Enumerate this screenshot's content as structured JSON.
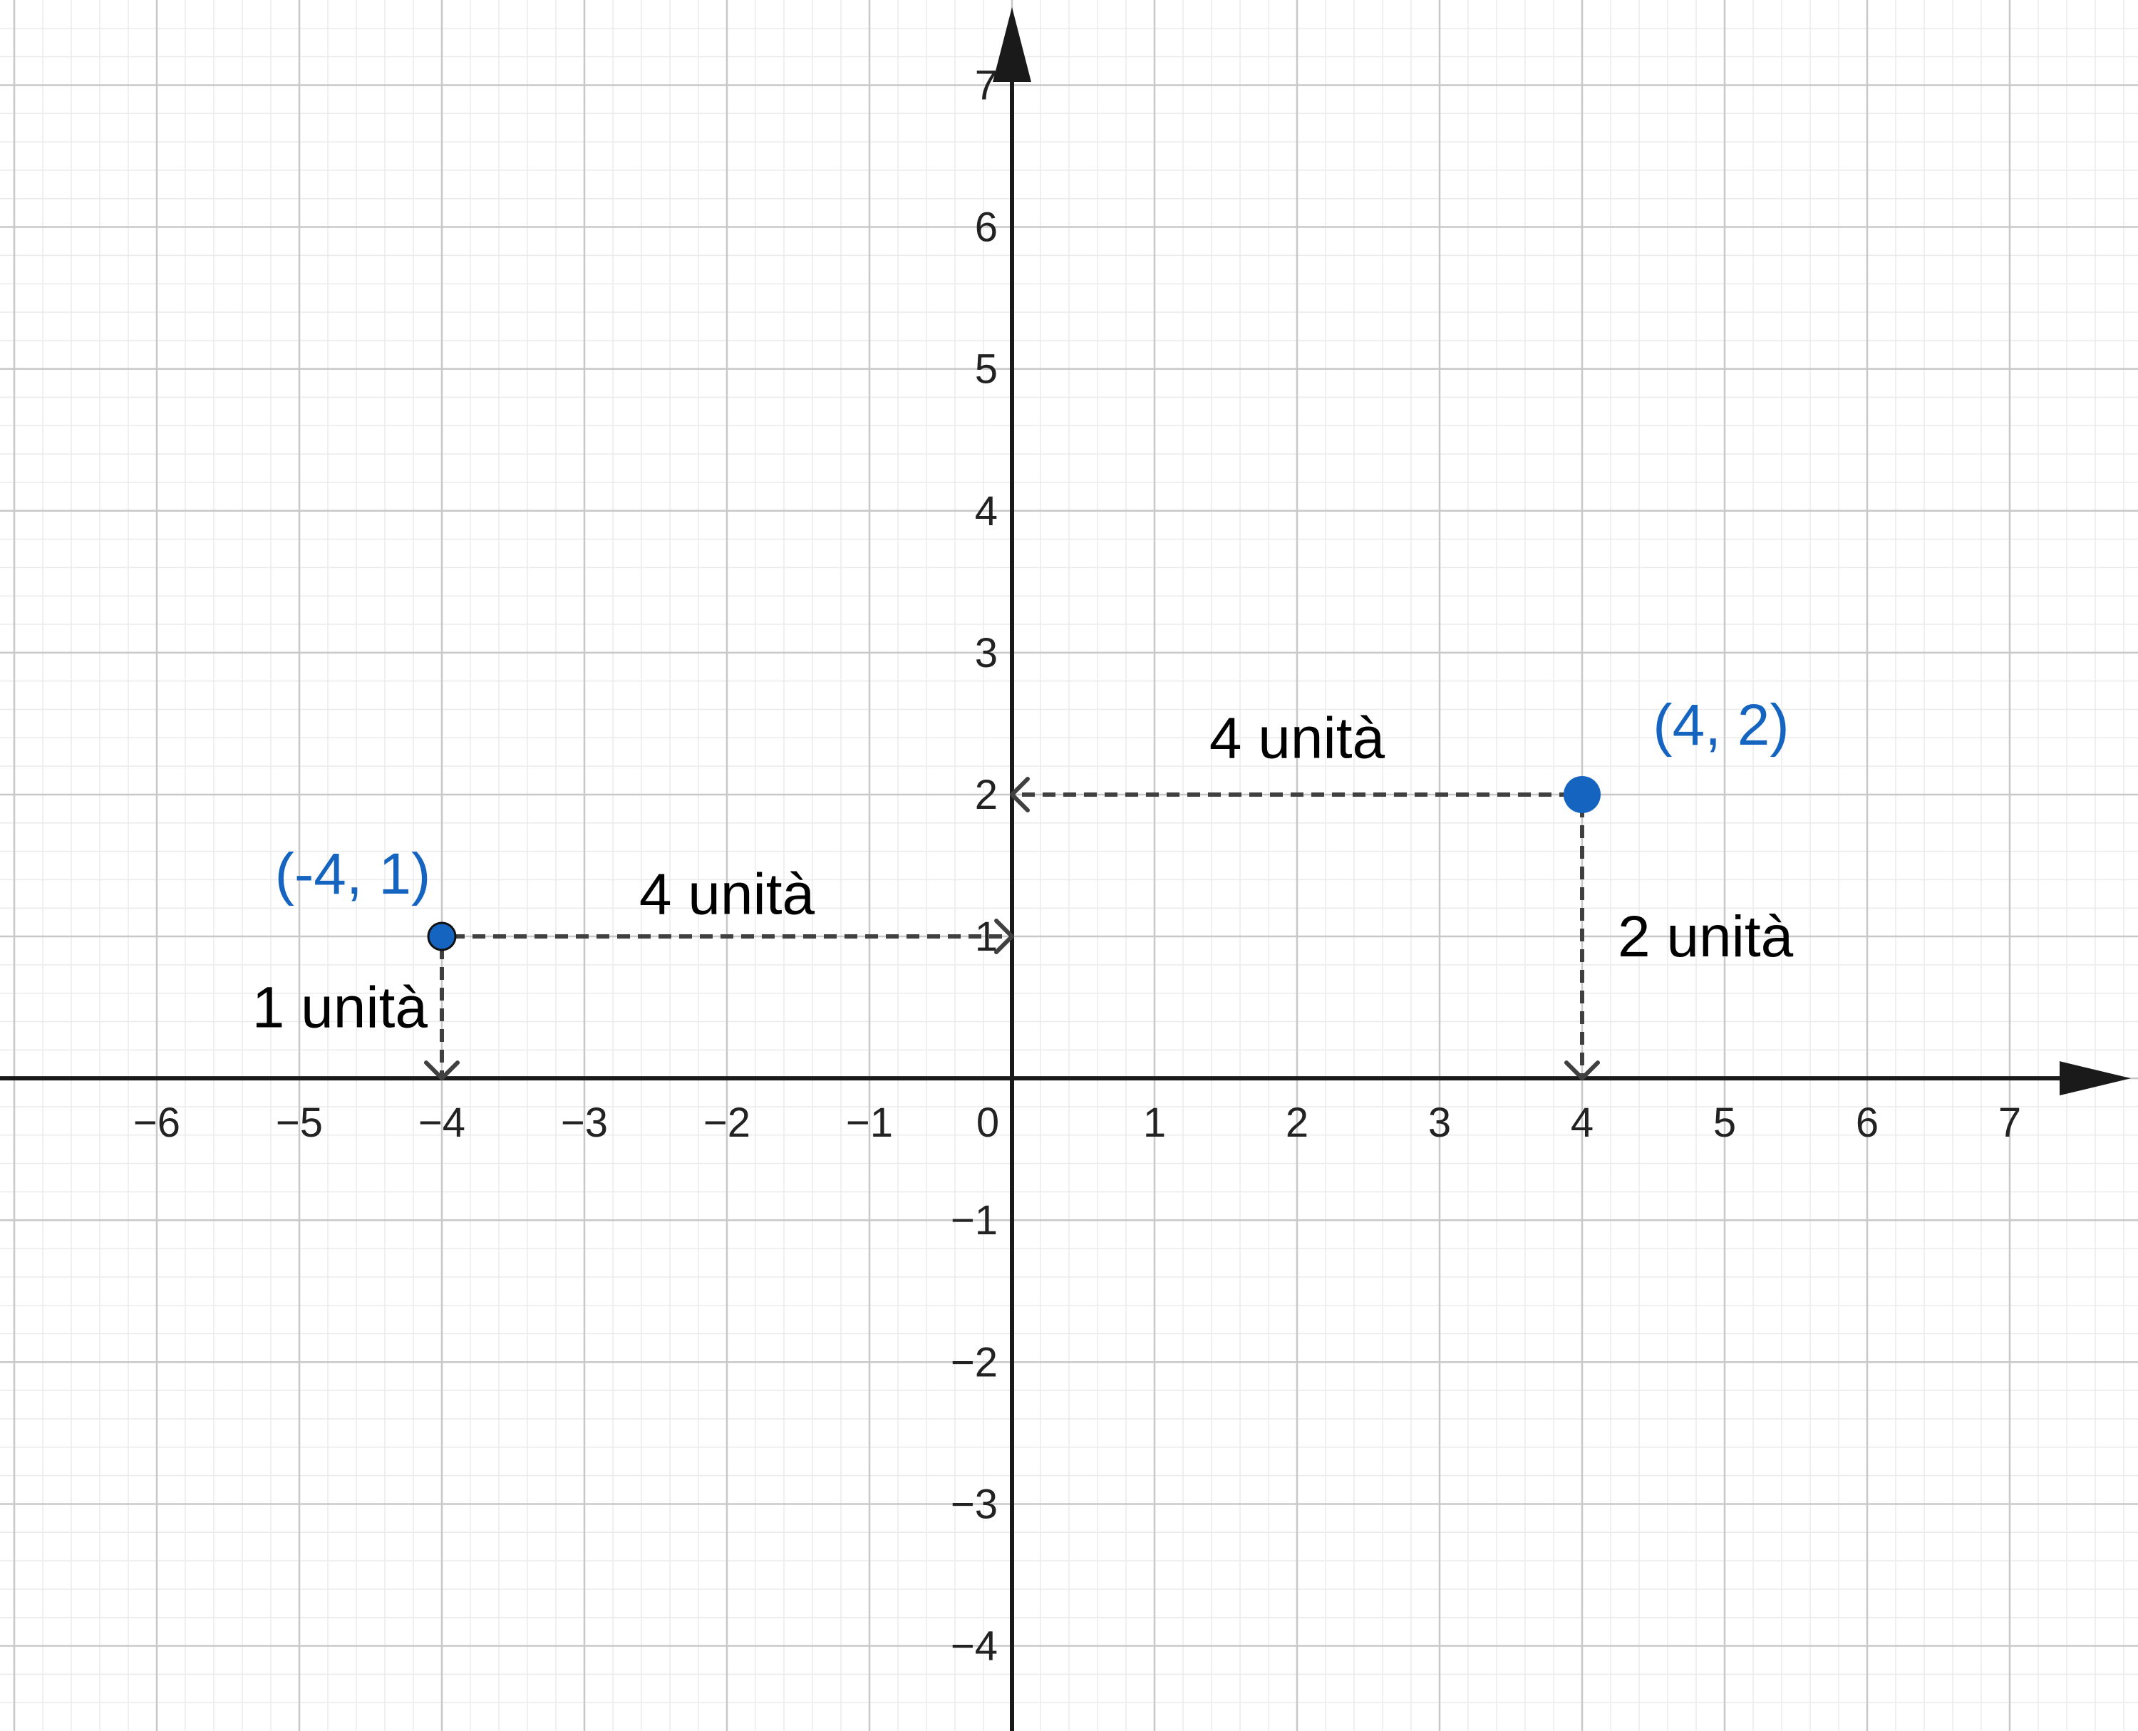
{
  "colors": {
    "point": "#1565c0",
    "axis": "#1a1a1a",
    "guide": "#404040",
    "grid_major": "#c8c8c8",
    "grid_minor": "#ebebeb",
    "text": "#000000"
  },
  "chart_data": {
    "type": "scatter",
    "title": "",
    "xlabel": "",
    "ylabel": "",
    "xlim": [
      -7.1,
      7.9
    ],
    "ylim": [
      -4.6,
      7.6
    ],
    "xticks": [
      -6,
      -5,
      -4,
      -3,
      -2,
      -1,
      1,
      2,
      3,
      4,
      5,
      6,
      7
    ],
    "yticks": [
      -4,
      -3,
      -2,
      -1,
      1,
      2,
      3,
      4,
      5,
      6,
      7
    ],
    "origin_label": "0",
    "grid": true,
    "minor_divisions": 5,
    "points": [
      {
        "x": -4,
        "y": 1,
        "label": "(-4, 1)"
      },
      {
        "x": 4,
        "y": 2,
        "label": "(4, 2)"
      }
    ],
    "guides": [
      {
        "from": [
          -4,
          1
        ],
        "to": [
          -4,
          0
        ]
      },
      {
        "from": [
          -4,
          1
        ],
        "to": [
          0,
          1
        ]
      },
      {
        "from": [
          4,
          2
        ],
        "to": [
          0,
          2
        ]
      },
      {
        "from": [
          4,
          2
        ],
        "to": [
          4,
          0
        ]
      }
    ],
    "annotations": [
      {
        "text": "1 unità",
        "x": -4.1,
        "y": 0.5,
        "anchor": "end"
      },
      {
        "text": "4 unità",
        "x": -2.0,
        "y": 1.3,
        "anchor": "middle"
      },
      {
        "text": "4 unità",
        "x": 2.0,
        "y": 2.4,
        "anchor": "middle"
      },
      {
        "text": "2 unità",
        "x": 4.25,
        "y": 1.0,
        "anchor": "start"
      }
    ]
  }
}
